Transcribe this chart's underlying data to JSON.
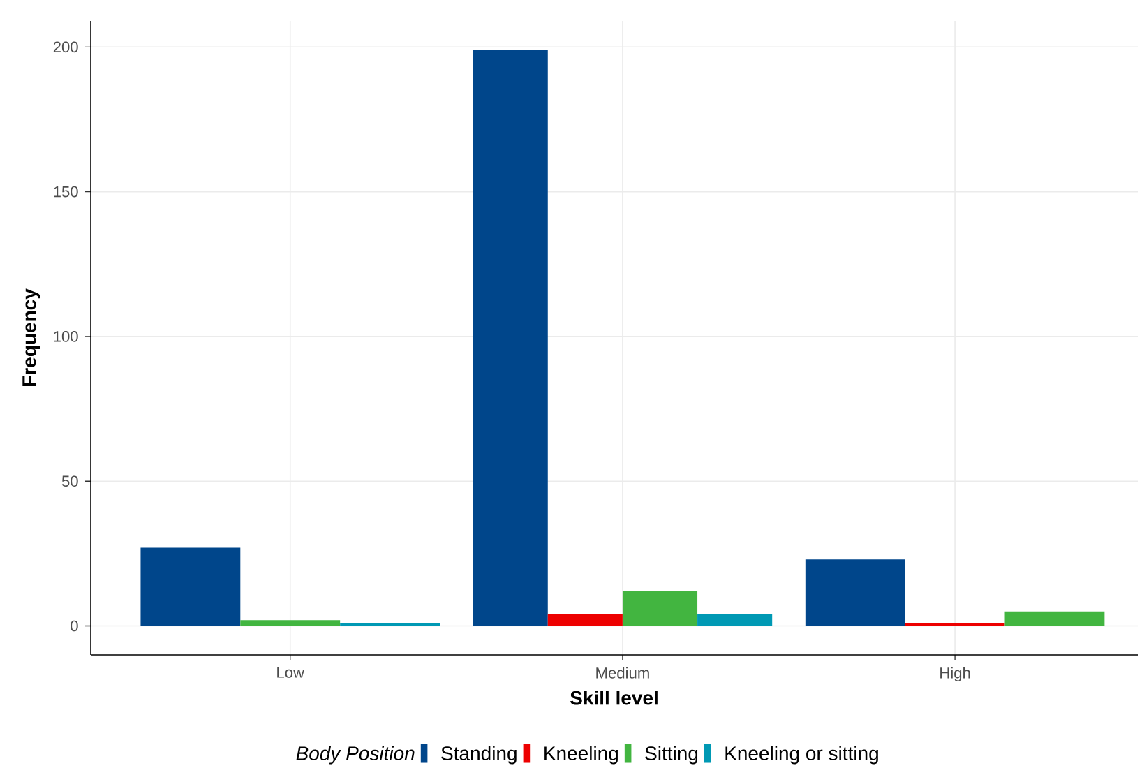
{
  "chart_data": {
    "type": "bar",
    "xlabel": "Skill level",
    "ylabel": "Frequency",
    "legend_title": "Body Position",
    "categories": [
      "Low",
      "Medium",
      "High"
    ],
    "series": [
      {
        "name": "Standing",
        "color": "#00468b",
        "values": [
          27,
          199,
          23
        ]
      },
      {
        "name": "Kneeling",
        "color": "#ed0000",
        "values": [
          null,
          4,
          1
        ]
      },
      {
        "name": "Sitting",
        "color": "#42b540",
        "values": [
          2,
          12,
          5
        ]
      },
      {
        "name": "Kneeling or sitting",
        "color": "#0099b4",
        "values": [
          1,
          4,
          null
        ]
      }
    ],
    "ylim": [
      -10,
      209
    ],
    "yticks": [
      0,
      50,
      100,
      150,
      200
    ],
    "grid": true,
    "legend": "bottom"
  }
}
